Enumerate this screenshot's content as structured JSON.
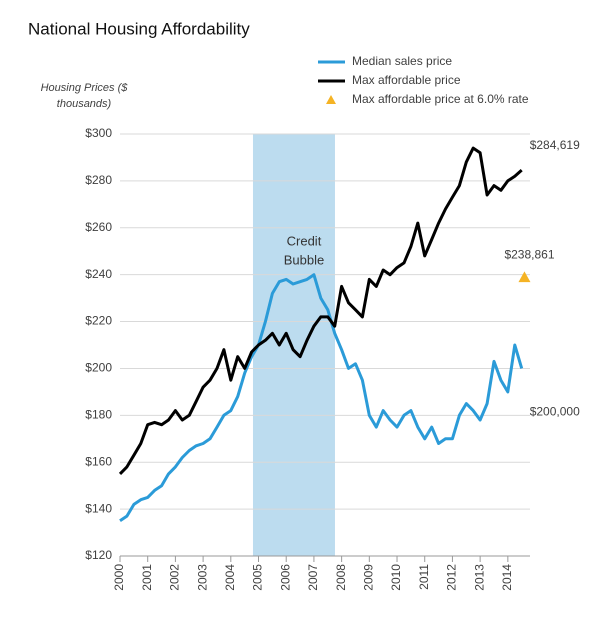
{
  "chart_data": {
    "type": "line",
    "title": "National Housing  Affordability",
    "ylabel": [
      "Housing Prices ($",
      "thousands)"
    ],
    "x": [
      2000,
      2000.25,
      2000.5,
      2000.75,
      2001,
      2001.25,
      2001.5,
      2001.75,
      2002,
      2002.25,
      2002.5,
      2002.75,
      2003,
      2003.25,
      2003.5,
      2003.75,
      2004,
      2004.25,
      2004.5,
      2004.75,
      2005,
      2005.25,
      2005.5,
      2005.75,
      2006,
      2006.25,
      2006.5,
      2006.75,
      2007,
      2007.25,
      2007.5,
      2007.75,
      2008,
      2008.25,
      2008.5,
      2008.75,
      2009,
      2009.25,
      2009.5,
      2009.75,
      2010,
      2010.25,
      2010.5,
      2010.75,
      2011,
      2011.25,
      2011.5,
      2011.75,
      2012,
      2012.25,
      2012.5,
      2012.75,
      2013,
      2013.25,
      2013.5,
      2013.75,
      2014,
      2014.25,
      2014.5
    ],
    "series": [
      {
        "name": "Median sales price",
        "color": "#2b9bd8",
        "values": [
          135,
          137,
          142,
          144,
          145,
          148,
          150,
          155,
          158,
          162,
          165,
          167,
          168,
          170,
          175,
          180,
          182,
          188,
          198,
          205,
          210,
          220,
          232,
          237,
          238,
          236,
          237,
          238,
          240,
          230,
          225,
          215,
          208,
          200,
          202,
          195,
          180,
          175,
          182,
          178,
          175,
          180,
          182,
          175,
          170,
          175,
          168,
          170,
          170,
          180,
          185,
          182,
          178,
          185,
          203,
          195,
          190,
          210,
          200
        ],
        "value_labels": [
          null,
          null,
          null,
          null,
          null,
          null,
          null,
          null,
          null,
          null,
          null,
          null,
          null,
          null,
          null,
          null,
          null,
          null,
          null,
          null,
          null,
          null,
          null,
          null,
          null,
          null,
          null,
          null,
          null,
          null,
          null,
          null,
          null,
          null,
          null,
          null,
          null,
          null,
          null,
          null,
          null,
          null,
          null,
          null,
          null,
          null,
          null,
          null,
          null,
          null,
          null,
          null,
          null,
          null,
          null,
          null,
          null,
          null,
          "$200,000"
        ]
      },
      {
        "name": "Max affordable price",
        "color": "#000000",
        "values": [
          155,
          158,
          163,
          168,
          176,
          177,
          176,
          178,
          182,
          178,
          180,
          186,
          192,
          195,
          200,
          208,
          195,
          205,
          200,
          207,
          210,
          212,
          215,
          210,
          215,
          208,
          205,
          212,
          218,
          222,
          222,
          218,
          235,
          228,
          225,
          222,
          238,
          235,
          242,
          240,
          243,
          245,
          252,
          262,
          248,
          255,
          262,
          268,
          273,
          278,
          288,
          294,
          292,
          274,
          278,
          276,
          280,
          282,
          284.619
        ],
        "value_labels": [
          null,
          null,
          null,
          null,
          null,
          null,
          null,
          null,
          null,
          null,
          null,
          null,
          null,
          null,
          null,
          null,
          null,
          null,
          null,
          null,
          null,
          null,
          null,
          null,
          null,
          null,
          null,
          null,
          null,
          null,
          null,
          null,
          null,
          null,
          null,
          null,
          null,
          null,
          null,
          null,
          null,
          null,
          null,
          null,
          null,
          null,
          null,
          null,
          null,
          null,
          null,
          null,
          null,
          null,
          null,
          null,
          null,
          null,
          "$284,619"
        ]
      },
      {
        "name": "Max affordable price at 6.0% rate",
        "color": "#f5b324",
        "marker": "triangle",
        "x": [
          2014.6
        ],
        "values": [
          238.861
        ],
        "value_labels": [
          "$238,861"
        ]
      }
    ],
    "shaded_region": [
      2004.8,
      2007.76
    ],
    "shaded_color": "#bcdcef",
    "shaded_label": [
      "Credit",
      "Bubble"
    ],
    "xlim": [
      2000,
      2014.8
    ],
    "xticks": [
      2000,
      2001,
      2002,
      2003,
      2004,
      2005,
      2006,
      2007,
      2008,
      2009,
      2010,
      2011,
      2012,
      2013,
      2014
    ],
    "ylim": [
      120,
      300
    ],
    "yticks": [
      {
        "value": 120,
        "label": "$120"
      },
      {
        "value": 140,
        "label": "$140"
      },
      {
        "value": 160,
        "label": "$160"
      },
      {
        "value": 180,
        "label": "$180"
      },
      {
        "value": 200,
        "label": "$200"
      },
      {
        "value": 220,
        "label": "$220"
      },
      {
        "value": 240,
        "label": "$240"
      },
      {
        "value": 260,
        "label": "$260"
      },
      {
        "value": 280,
        "label": "$280"
      },
      {
        "value": 300,
        "label": "$300"
      }
    ],
    "grid": true
  }
}
